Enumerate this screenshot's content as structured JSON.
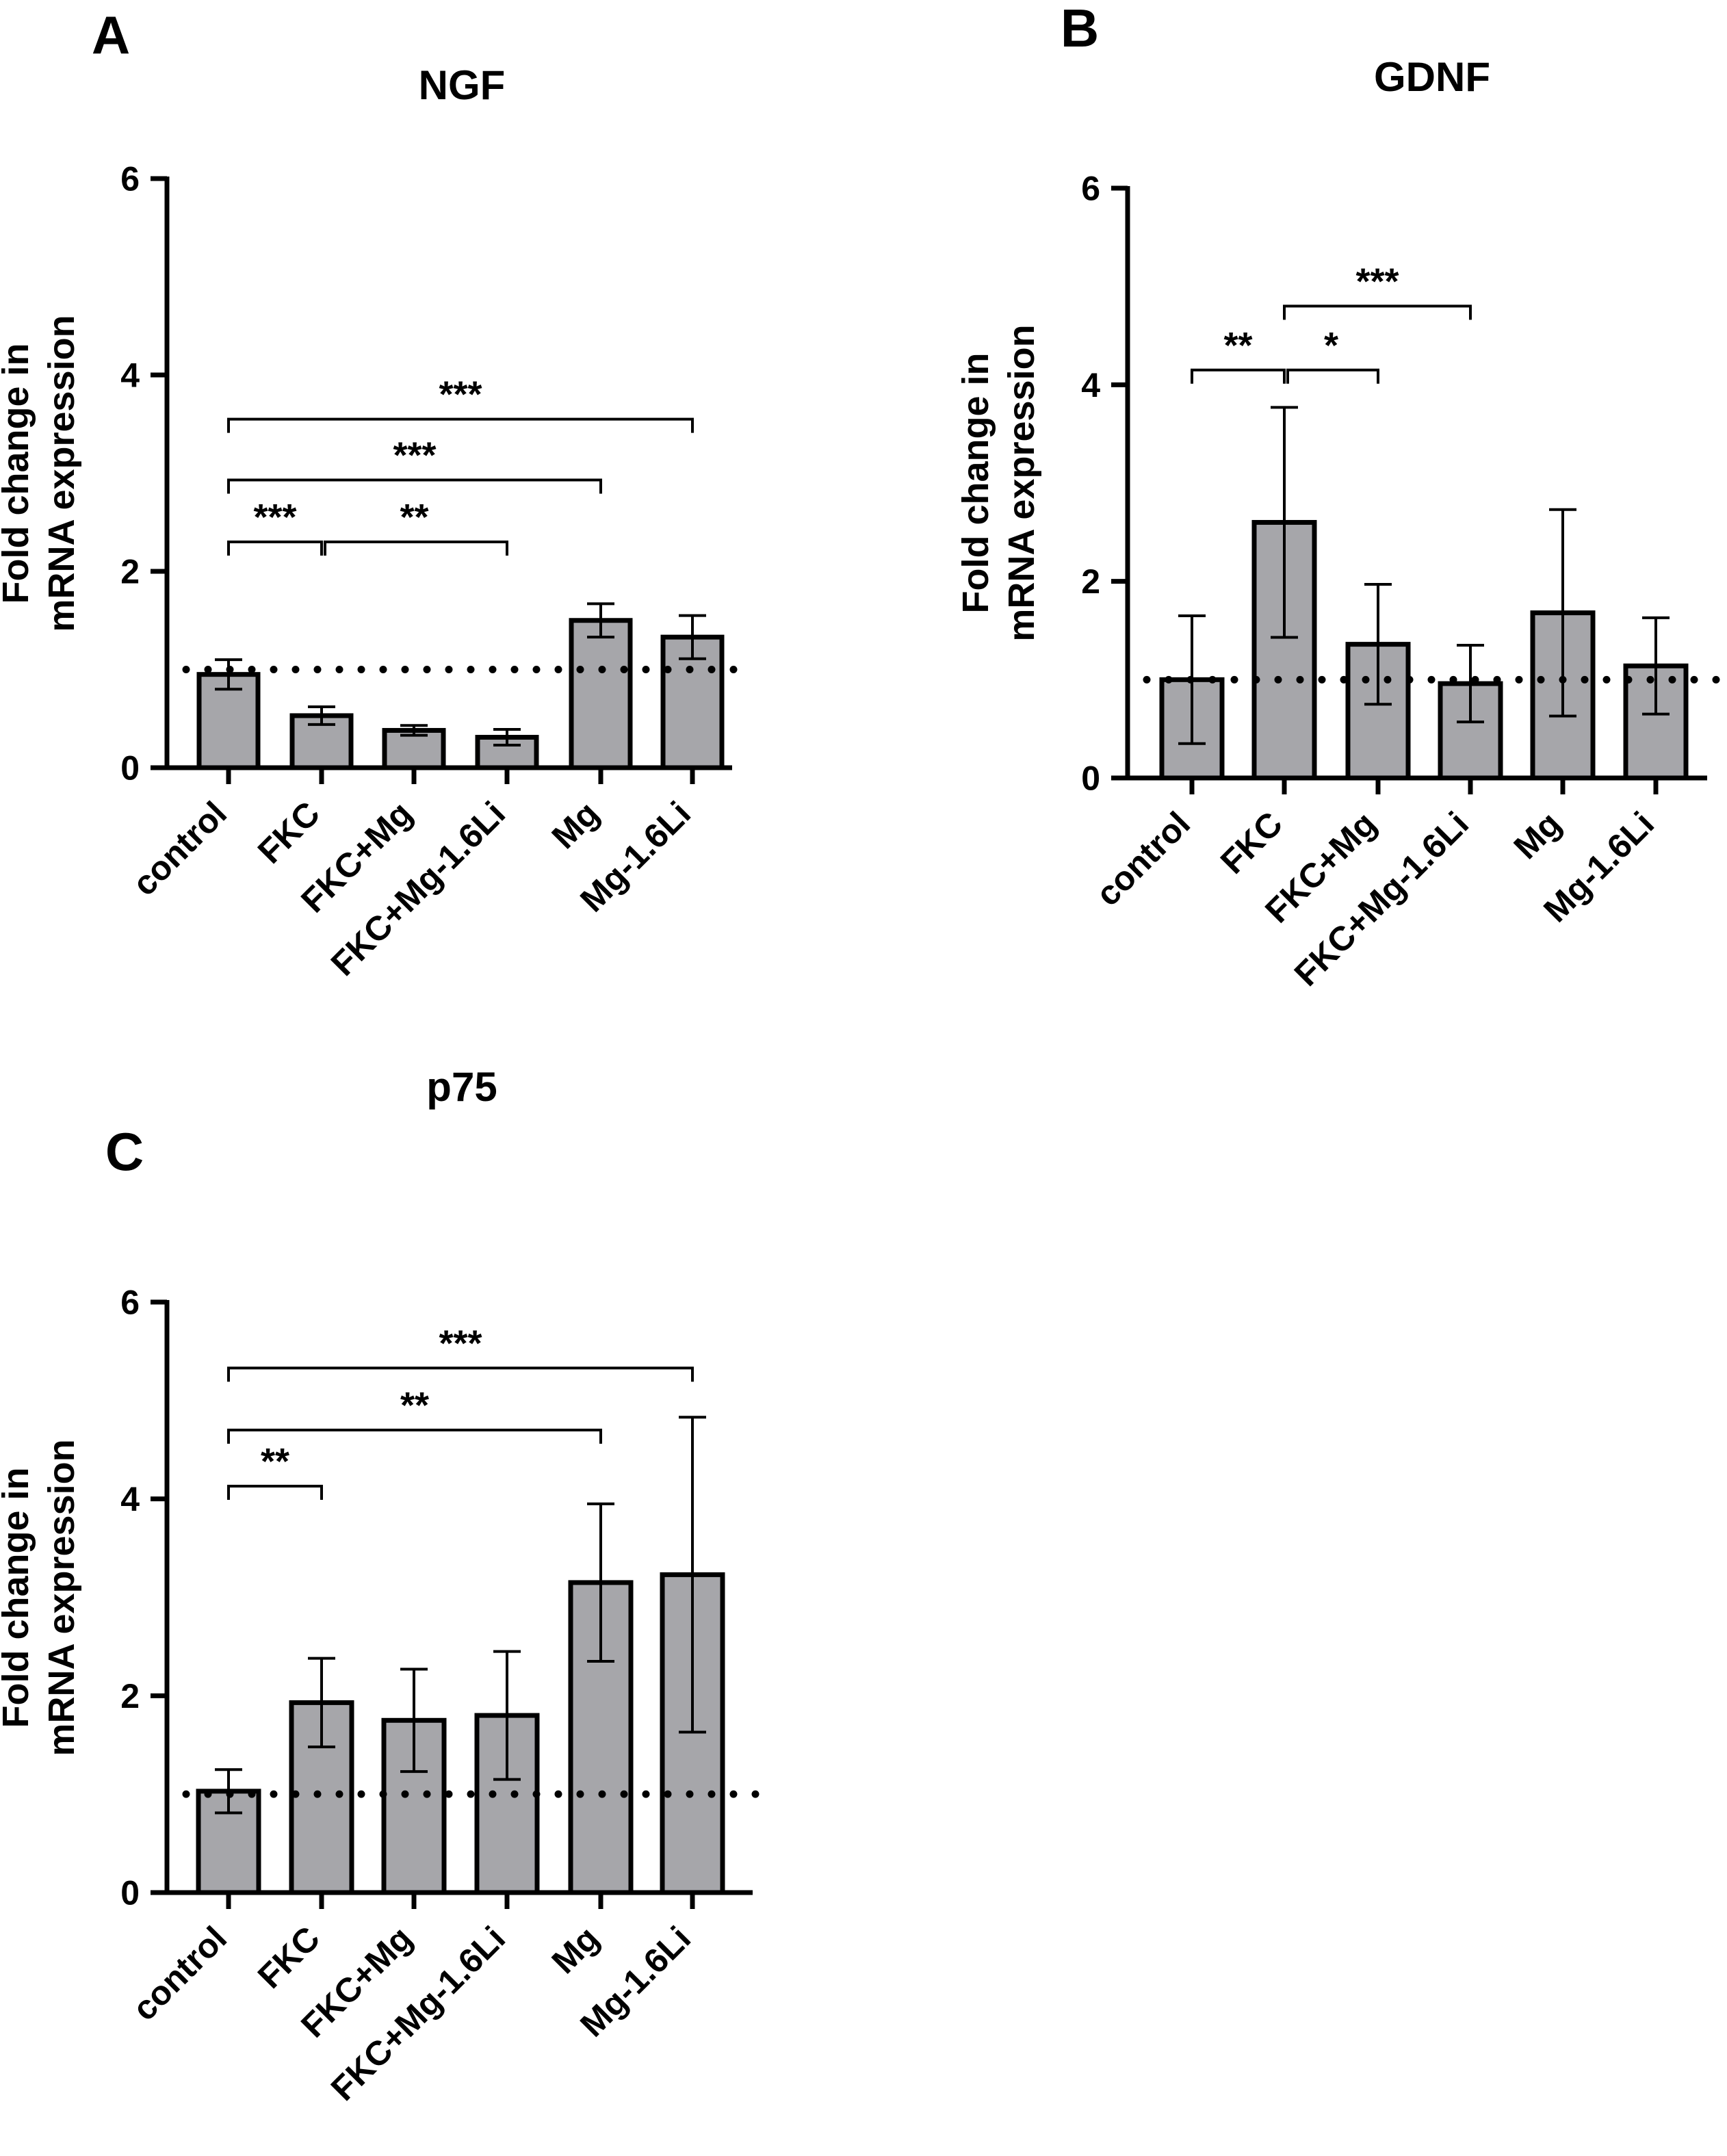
{
  "chart_data": [
    {
      "panel_label": "A",
      "type": "bar",
      "title": "NGF",
      "xlabel": "",
      "ylabel": [
        "Fold change in",
        "mRNA expression"
      ],
      "ylim": [
        0,
        6
      ],
      "yticks": [
        0,
        2,
        4,
        6
      ],
      "ytick_labels": [
        "0",
        "2",
        "4",
        "6"
      ],
      "reference_line": 1,
      "bar_color": "#a6a6aa",
      "categories": [
        "control",
        "FKC",
        "FKC+Mg",
        "FKC+Mg-1.6Li",
        "Mg",
        "Mg-1.6Li"
      ],
      "values": [
        0.95,
        0.53,
        0.38,
        0.31,
        1.5,
        1.33
      ],
      "errors": [
        0.15,
        0.09,
        0.05,
        0.08,
        0.17,
        0.22
      ],
      "error_direction": "both",
      "significance": [
        {
          "from": 0,
          "to": 1,
          "label": "***",
          "y": 2.3
        },
        {
          "from": 1,
          "to": 3,
          "label": "**",
          "y": 2.3
        },
        {
          "from": 0,
          "to": 4,
          "label": "***",
          "y": 2.93
        },
        {
          "from": 0,
          "to": 5,
          "label": "***",
          "y": 3.55
        }
      ]
    },
    {
      "panel_label": "B",
      "type": "bar",
      "title": "GDNF",
      "xlabel": "",
      "ylabel": [
        "Fold change in",
        "mRNA expression"
      ],
      "ylim": [
        0,
        6
      ],
      "yticks": [
        0,
        2,
        4,
        6
      ],
      "ytick_labels": [
        "0",
        "2",
        "4",
        "6"
      ],
      "reference_line": 1,
      "bar_color": "#a6a6aa",
      "categories": [
        "control",
        "FKC",
        "FKC+Mg",
        "FKC+Mg-1.6Li",
        "Mg",
        "Mg-1.6Li"
      ],
      "values": [
        1.0,
        2.6,
        1.36,
        0.96,
        1.68,
        1.14
      ],
      "errors": [
        0.65,
        1.17,
        0.61,
        0.39,
        1.05,
        0.49
      ],
      "error_direction": "both",
      "significance": [
        {
          "from": 0,
          "to": 1,
          "label": "**",
          "y": 4.15
        },
        {
          "from": 1,
          "to": 2,
          "label": "*",
          "y": 4.15
        },
        {
          "from": 1,
          "to": 3,
          "label": "***",
          "y": 4.8
        }
      ]
    },
    {
      "panel_label": "C",
      "type": "bar",
      "title": "p75",
      "xlabel": "",
      "ylabel": [
        "Fold change in",
        "mRNA expression"
      ],
      "ylim": [
        0,
        6
      ],
      "yticks": [
        0,
        2,
        4,
        6
      ],
      "ytick_labels": [
        "0",
        "2",
        "4",
        "6"
      ],
      "reference_line": 1,
      "bar_color": "#a6a6aa",
      "categories": [
        "control",
        "FKC",
        "FKC+Mg",
        "FKC+Mg-1.6Li",
        "Mg",
        "Mg-1.6Li"
      ],
      "values": [
        1.03,
        1.93,
        1.75,
        1.8,
        3.15,
        3.23
      ],
      "errors": [
        0.22,
        0.45,
        0.52,
        0.65,
        0.8,
        1.6
      ],
      "error_direction": "both",
      "significance": [
        {
          "from": 0,
          "to": 1,
          "label": "**",
          "y": 4.13
        },
        {
          "from": 0,
          "to": 4,
          "label": "**",
          "y": 4.7
        },
        {
          "from": 0,
          "to": 5,
          "label": "***",
          "y": 5.33
        }
      ]
    }
  ]
}
